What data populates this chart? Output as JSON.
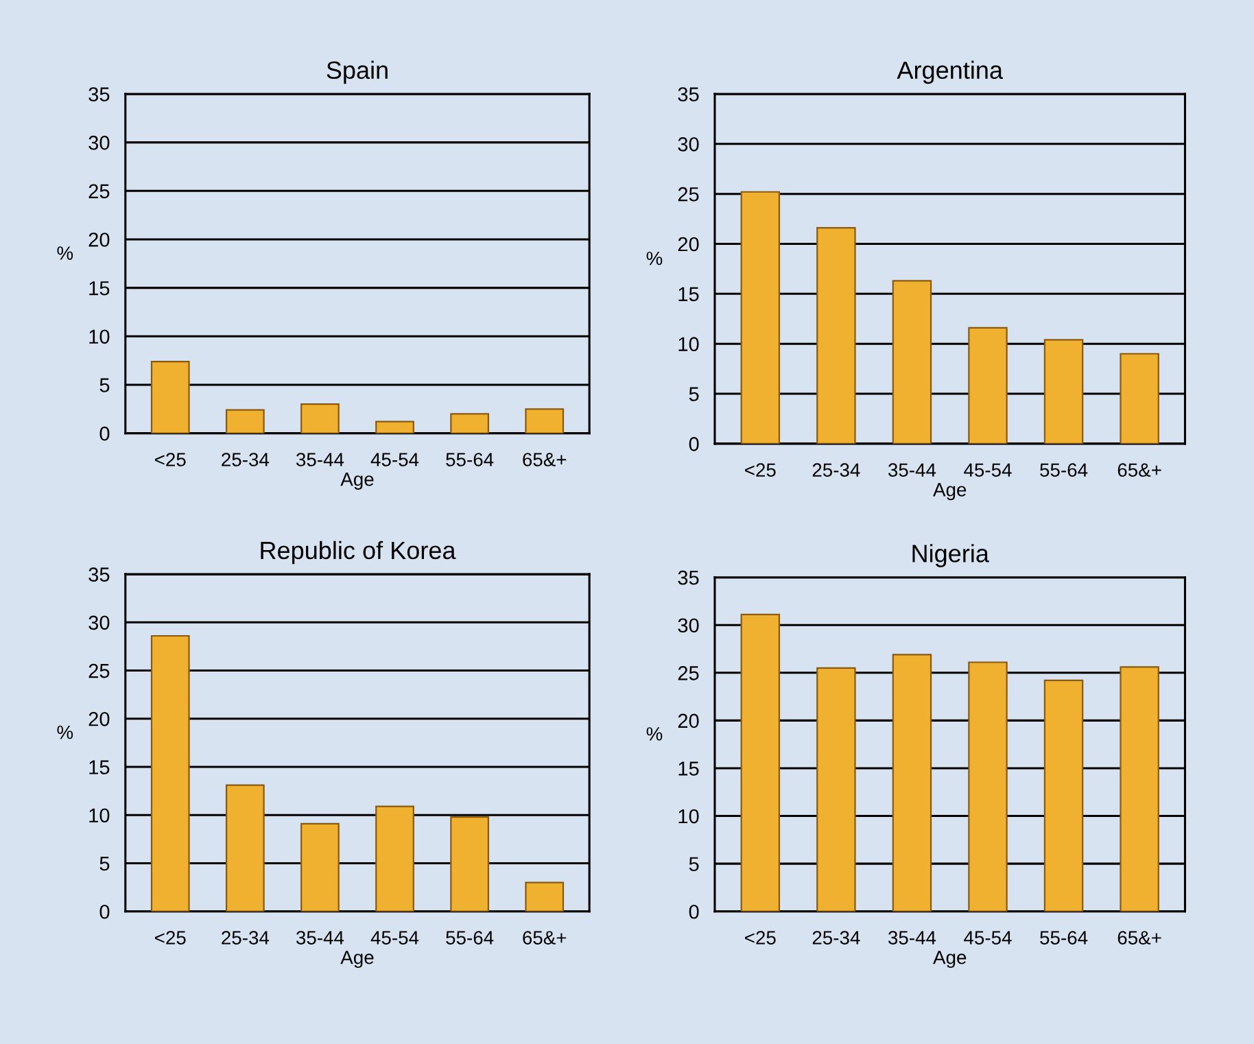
{
  "chart_data": [
    {
      "type": "bar",
      "title": "Spain",
      "xlabel": "Age",
      "ylabel": "%",
      "categories": [
        "<25",
        "25-34",
        "35-44",
        "45-54",
        "55-64",
        "65&+"
      ],
      "values": [
        7.4,
        2.4,
        3.0,
        1.2,
        2.0,
        2.5
      ],
      "color": "#f0b030",
      "ylim": [
        0,
        35
      ],
      "yticks": [
        0,
        5,
        10,
        15,
        20,
        25,
        30,
        35
      ],
      "grid": "y"
    },
    {
      "type": "bar",
      "title": "Argentina",
      "xlabel": "Age",
      "ylabel": "%",
      "categories": [
        "<25",
        "25-34",
        "35-44",
        "45-54",
        "55-64",
        "65&+"
      ],
      "values": [
        25.2,
        21.6,
        16.3,
        11.6,
        10.4,
        9.0
      ],
      "color": "#f0b030",
      "ylim": [
        0,
        35
      ],
      "yticks": [
        0,
        5,
        10,
        15,
        20,
        25,
        30,
        35
      ],
      "grid": "y"
    },
    {
      "type": "bar",
      "title": "Republic of Korea",
      "xlabel": "Age",
      "ylabel": "%",
      "categories": [
        "<25",
        "25-34",
        "35-44",
        "45-54",
        "55-64",
        "65&+"
      ],
      "values": [
        28.6,
        13.1,
        9.1,
        10.9,
        9.8,
        3.0
      ],
      "color": "#f0b030",
      "ylim": [
        0,
        35
      ],
      "yticks": [
        0,
        5,
        10,
        15,
        20,
        25,
        30,
        35
      ],
      "grid": "y"
    },
    {
      "type": "bar",
      "title": "Nigeria",
      "xlabel": "Age",
      "ylabel": "%",
      "categories": [
        "<25",
        "25-34",
        "35-44",
        "45-54",
        "55-64",
        "65&+"
      ],
      "values": [
        31.1,
        25.5,
        26.9,
        26.1,
        24.2,
        25.6
      ],
      "color": "#f0b030",
      "ylim": [
        0,
        35
      ],
      "yticks": [
        0,
        5,
        10,
        15,
        20,
        25,
        30,
        35
      ],
      "grid": "y"
    }
  ]
}
